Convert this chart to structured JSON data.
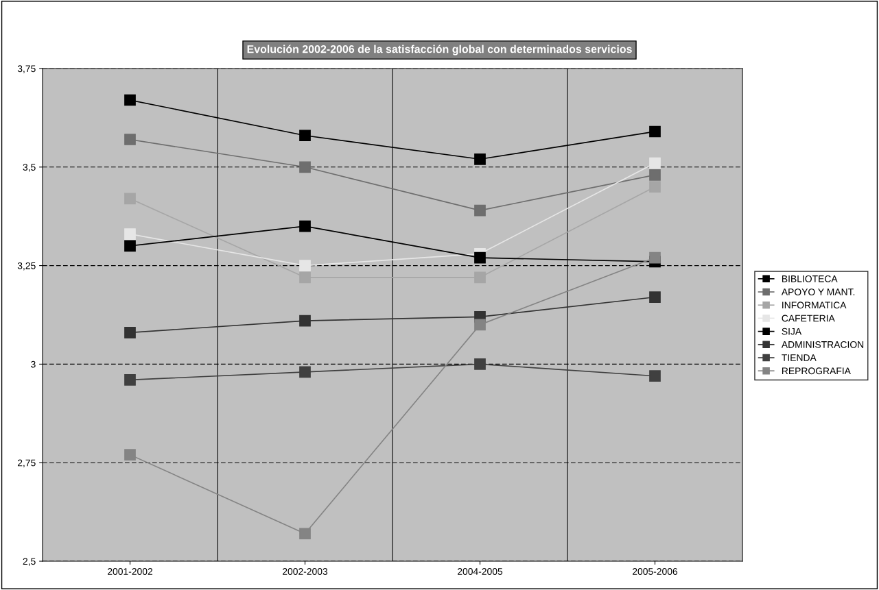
{
  "chart_data": {
    "type": "line",
    "title": "Evolución 2002-2006 de la satisfacción global con determinados servicios",
    "categories": [
      "2001-2002",
      "2002-2003",
      "2004-2005",
      "2005-2006"
    ],
    "ylim": [
      2.5,
      3.75
    ],
    "yticks": [
      {
        "value": 2.5,
        "label": "2,5"
      },
      {
        "value": 2.75,
        "label": "2,75"
      },
      {
        "value": 3,
        "label": "3"
      },
      {
        "value": 3.25,
        "label": "3,25"
      },
      {
        "value": 3.5,
        "label": "3,5"
      },
      {
        "value": 3.75,
        "label": "3,75"
      }
    ],
    "grid": true,
    "legend": "right",
    "marker": "square",
    "line_style": "solid",
    "series": [
      {
        "name": "BIBLIOTECA",
        "color": "#000000",
        "values": [
          3.67,
          3.58,
          3.52,
          3.59
        ]
      },
      {
        "name": "APOYO Y MANT.",
        "color": "#6e6e6e",
        "values": [
          3.57,
          3.5,
          3.39,
          3.48
        ]
      },
      {
        "name": "INFORMATICA",
        "color": "#a6a6a6",
        "values": [
          3.42,
          3.22,
          3.22,
          3.45
        ]
      },
      {
        "name": "CAFETERIA",
        "color": "#e6e6e6",
        "values": [
          3.33,
          3.25,
          3.28,
          3.51
        ]
      },
      {
        "name": "SIJA",
        "color": "#000000",
        "values": [
          3.3,
          3.35,
          3.27,
          3.26
        ]
      },
      {
        "name": "ADMINISTRACION",
        "color": "#333333",
        "values": [
          3.08,
          3.11,
          3.12,
          3.17
        ]
      },
      {
        "name": "TIENDA",
        "color": "#404040",
        "values": [
          2.96,
          2.98,
          3.0,
          2.97
        ]
      },
      {
        "name": "REPROGRAFIA",
        "color": "#848484",
        "values": [
          2.77,
          2.57,
          3.1,
          3.27
        ]
      }
    ]
  }
}
